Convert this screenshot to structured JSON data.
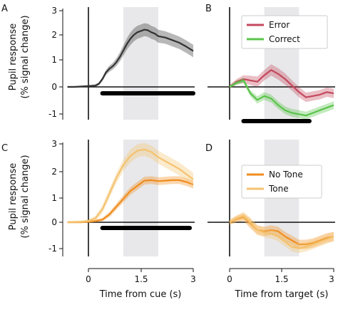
{
  "figure": {
    "ylabel_line1": "Pupil response",
    "ylabel_line2": "(% signal change)",
    "xlabel_left": "Time from cue (s)",
    "xlabel_right": "Time from target (s)",
    "x_ticks": [
      "0",
      "1.5",
      "3"
    ],
    "y_ticks_top": [
      "3",
      "2",
      "1",
      "0",
      "-1"
    ],
    "y_ticks_bottom": [
      "3",
      "2",
      "1",
      "0",
      "-1"
    ]
  },
  "chart_data": [
    {
      "panel": "A",
      "type": "line",
      "xlabel": "Time from cue (s)",
      "ylabel": "Pupil response (% signal change)",
      "xlim": [
        -0.8,
        3
      ],
      "ylim": [
        -1.4,
        3.2
      ],
      "shaded_window": [
        1,
        2
      ],
      "significance_bar": [
        0.4,
        3
      ],
      "series": [
        {
          "color": "#333333",
          "x": [
            -0.6,
            -0.4,
            -0.2,
            0,
            0.2,
            0.3,
            0.4,
            0.5,
            0.6,
            0.7,
            0.8,
            0.9,
            1,
            1.1,
            1.2,
            1.3,
            1.4,
            1.5,
            1.6,
            1.7,
            1.8,
            1.9,
            2,
            2.2,
            2.4,
            2.6,
            2.8,
            3
          ],
          "y": [
            0,
            0,
            0.02,
            0.03,
            0.05,
            0.12,
            0.3,
            0.55,
            0.7,
            0.8,
            0.95,
            1.15,
            1.4,
            1.65,
            1.85,
            2.0,
            2.1,
            2.15,
            2.2,
            2.18,
            2.1,
            2.05,
            1.95,
            1.9,
            1.8,
            1.7,
            1.55,
            1.38
          ],
          "err": [
            0.03,
            0.03,
            0.03,
            0.04,
            0.05,
            0.06,
            0.08,
            0.1,
            0.12,
            0.13,
            0.15,
            0.17,
            0.2,
            0.22,
            0.24,
            0.25,
            0.25,
            0.25,
            0.25,
            0.25,
            0.25,
            0.25,
            0.25,
            0.24,
            0.24,
            0.24,
            0.24,
            0.24
          ]
        }
      ]
    },
    {
      "panel": "B",
      "type": "line",
      "xlabel": "Time from target (s)",
      "xlim": [
        0,
        3
      ],
      "ylim": [
        -1.4,
        3.2
      ],
      "shaded_window": [
        1,
        2
      ],
      "significance_bar": [
        0.4,
        2.3
      ],
      "legend": "top-right",
      "series": [
        {
          "name": "Error",
          "color": "#c4475c",
          "x": [
            0,
            0.2,
            0.4,
            0.6,
            0.8,
            1,
            1.2,
            1.4,
            1.6,
            1.8,
            2,
            2.2,
            2.4,
            2.6,
            2.8,
            3
          ],
          "y": [
            0,
            0.2,
            0.3,
            0.25,
            0.2,
            0.45,
            0.65,
            0.5,
            0.3,
            0.05,
            -0.2,
            -0.4,
            -0.35,
            -0.3,
            -0.2,
            -0.25
          ],
          "err": [
            0.08,
            0.1,
            0.15,
            0.18,
            0.2,
            0.2,
            0.22,
            0.22,
            0.22,
            0.2,
            0.2,
            0.18,
            0.18,
            0.18,
            0.18,
            0.18
          ]
        },
        {
          "name": "Correct",
          "color": "#5ac44a",
          "x": [
            0,
            0.2,
            0.4,
            0.6,
            0.8,
            1,
            1.2,
            1.4,
            1.6,
            1.8,
            2,
            2.2,
            2.4,
            2.6,
            2.8,
            3
          ],
          "y": [
            0,
            0.15,
            0.25,
            -0.25,
            -0.5,
            -0.35,
            -0.45,
            -0.7,
            -0.9,
            -1.0,
            -1.05,
            -1.1,
            -1.0,
            -0.9,
            -0.8,
            -0.7
          ],
          "err": [
            0.05,
            0.08,
            0.1,
            0.12,
            0.14,
            0.15,
            0.15,
            0.15,
            0.15,
            0.15,
            0.15,
            0.15,
            0.15,
            0.15,
            0.15,
            0.15
          ]
        }
      ]
    },
    {
      "panel": "C",
      "type": "line",
      "xlabel": "Time from cue (s)",
      "ylabel": "Pupil response (% signal change)",
      "xlim": [
        -0.8,
        3
      ],
      "ylim": [
        -1.4,
        3.2
      ],
      "shaded_window": [
        1,
        2
      ],
      "significance_bar": [
        0.4,
        2.9
      ],
      "series": [
        {
          "name": "No Tone",
          "color": "#f08c1e",
          "x": [
            -0.6,
            -0.2,
            0,
            0.2,
            0.4,
            0.6,
            0.8,
            1,
            1.2,
            1.4,
            1.6,
            1.8,
            2,
            2.2,
            2.4,
            2.6,
            2.8,
            3
          ],
          "y": [
            0,
            0,
            0.02,
            0.05,
            0.1,
            0.3,
            0.6,
            0.9,
            1.2,
            1.4,
            1.6,
            1.62,
            1.58,
            1.6,
            1.62,
            1.62,
            1.55,
            1.45
          ],
          "err": [
            0.03,
            0.03,
            0.04,
            0.05,
            0.07,
            0.1,
            0.12,
            0.14,
            0.15,
            0.15,
            0.15,
            0.15,
            0.15,
            0.15,
            0.15,
            0.15,
            0.15,
            0.15
          ]
        },
        {
          "name": "Tone",
          "color": "#f4c26e",
          "x": [
            -0.6,
            -0.2,
            0,
            0.2,
            0.4,
            0.6,
            0.8,
            1,
            1.2,
            1.4,
            1.6,
            1.8,
            2,
            2.2,
            2.4,
            2.6,
            2.8,
            3
          ],
          "y": [
            0,
            0.02,
            0.05,
            0.15,
            0.5,
            1.1,
            1.7,
            2.2,
            2.55,
            2.75,
            2.8,
            2.7,
            2.5,
            2.35,
            2.2,
            2.05,
            1.85,
            1.65
          ],
          "err": [
            0.05,
            0.05,
            0.06,
            0.1,
            0.15,
            0.18,
            0.2,
            0.22,
            0.25,
            0.25,
            0.25,
            0.25,
            0.25,
            0.25,
            0.25,
            0.25,
            0.25,
            0.25
          ]
        }
      ]
    },
    {
      "panel": "D",
      "type": "line",
      "xlabel": "Time from target (s)",
      "xlim": [
        0,
        3
      ],
      "ylim": [
        -1.4,
        3.2
      ],
      "shaded_window": [
        1,
        2
      ],
      "legend": "center-right",
      "series": [
        {
          "name": "No Tone",
          "color": "#f08c1e",
          "x": [
            0,
            0.2,
            0.4,
            0.6,
            0.8,
            1,
            1.2,
            1.4,
            1.6,
            1.8,
            2,
            2.2,
            2.4,
            2.6,
            2.8,
            3
          ],
          "y": [
            0,
            0.12,
            0.2,
            -0.05,
            -0.3,
            -0.35,
            -0.3,
            -0.35,
            -0.55,
            -0.7,
            -0.85,
            -0.85,
            -0.8,
            -0.7,
            -0.6,
            -0.55
          ],
          "err": [
            0.1,
            0.12,
            0.15,
            0.18,
            0.18,
            0.18,
            0.18,
            0.18,
            0.18,
            0.18,
            0.18,
            0.18,
            0.18,
            0.18,
            0.18,
            0.18
          ]
        },
        {
          "name": "Tone",
          "color": "#f4c26e",
          "x": [
            0,
            0.2,
            0.4,
            0.6,
            0.8,
            1,
            1.2,
            1.4,
            1.6,
            1.8,
            2,
            2.2,
            2.4,
            2.6,
            2.8,
            3
          ],
          "y": [
            0,
            0.15,
            0.25,
            0,
            -0.3,
            -0.4,
            -0.45,
            -0.55,
            -0.75,
            -0.95,
            -1.0,
            -0.95,
            -0.85,
            -0.75,
            -0.65,
            -0.55
          ],
          "err": [
            0.1,
            0.12,
            0.15,
            0.18,
            0.18,
            0.18,
            0.18,
            0.18,
            0.18,
            0.18,
            0.18,
            0.18,
            0.18,
            0.18,
            0.18,
            0.18
          ]
        }
      ]
    }
  ]
}
